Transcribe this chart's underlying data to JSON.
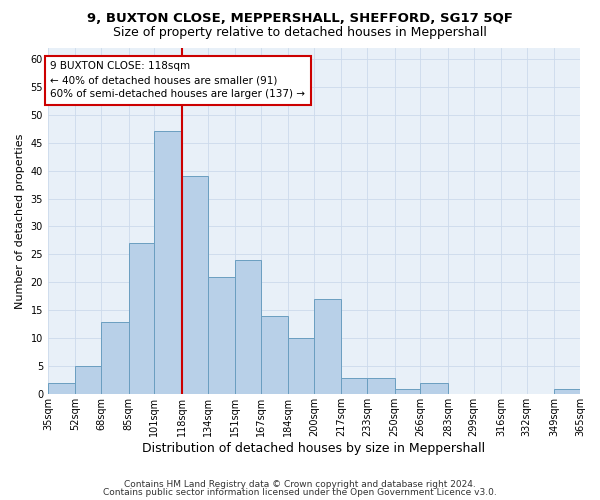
{
  "title": "9, BUXTON CLOSE, MEPPERSHALL, SHEFFORD, SG17 5QF",
  "subtitle": "Size of property relative to detached houses in Meppershall",
  "xlabel": "Distribution of detached houses by size in Meppershall",
  "ylabel": "Number of detached properties",
  "bin_edges": [
    35,
    52,
    68,
    85,
    101,
    118,
    134,
    151,
    167,
    184,
    200,
    217,
    233,
    250,
    266,
    283,
    299,
    316,
    332,
    349,
    365
  ],
  "bin_counts": [
    2,
    5,
    13,
    27,
    47,
    39,
    21,
    24,
    14,
    10,
    17,
    3,
    3,
    1,
    2,
    0,
    0,
    0,
    0,
    1
  ],
  "bar_color": "#b8d0e8",
  "bar_edge_color": "#6a9ec0",
  "property_size": 118,
  "vline_color": "#cc0000",
  "annotation_line1": "9 BUXTON CLOSE: 118sqm",
  "annotation_line2": "← 40% of detached houses are smaller (91)",
  "annotation_line3": "60% of semi-detached houses are larger (137) →",
  "annotation_box_color": "#ffffff",
  "annotation_box_edge": "#cc0000",
  "ylim": [
    0,
    62
  ],
  "yticks": [
    0,
    5,
    10,
    15,
    20,
    25,
    30,
    35,
    40,
    45,
    50,
    55,
    60
  ],
  "grid_color": "#ccdaeb",
  "bg_color": "#e8f0f8",
  "footer1": "Contains HM Land Registry data © Crown copyright and database right 2024.",
  "footer2": "Contains public sector information licensed under the Open Government Licence v3.0.",
  "title_fontsize": 9.5,
  "subtitle_fontsize": 9,
  "xlabel_fontsize": 9,
  "ylabel_fontsize": 8,
  "tick_fontsize": 7,
  "annotation_fontsize": 7.5,
  "footer_fontsize": 6.5
}
